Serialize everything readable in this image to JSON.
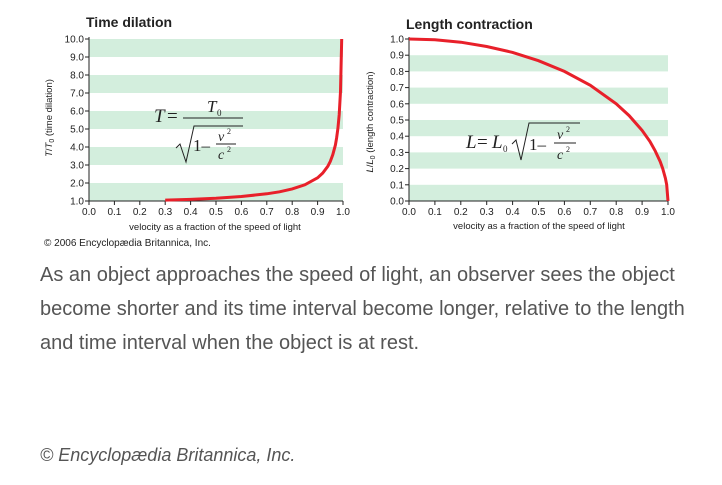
{
  "chart_data": [
    {
      "type": "line",
      "title": "Time dilation",
      "xlabel": "velocity as a fraction of the speed of light",
      "ylabel": "T/T0 (time dilation)",
      "xlim": [
        0.0,
        1.0
      ],
      "ylim": [
        1.0,
        10.0
      ],
      "x_ticks": [
        "0.0",
        "0.1",
        "0.2",
        "0.3",
        "0.4",
        "0.5",
        "0.6",
        "0.7",
        "0.8",
        "0.9",
        "1.0"
      ],
      "y_ticks": [
        "1.0",
        "2.0",
        "3.0",
        "4.0",
        "5.0",
        "6.0",
        "7.0",
        "8.0",
        "9.0",
        "10.0"
      ],
      "grid": "horizontal bands",
      "band_color": "#d3eedd",
      "line_color": "#e8202a",
      "formula": "T = T0 / sqrt(1 - v^2/c^2)",
      "x": [
        0.3,
        0.4,
        0.5,
        0.6,
        0.7,
        0.75,
        0.8,
        0.85,
        0.9,
        0.92,
        0.94,
        0.95,
        0.96,
        0.97,
        0.975,
        0.98,
        0.985,
        0.99,
        0.995
      ],
      "values": [
        1.05,
        1.09,
        1.15,
        1.25,
        1.4,
        1.51,
        1.67,
        1.9,
        2.29,
        2.55,
        2.93,
        3.2,
        3.57,
        4.11,
        4.5,
        5.03,
        5.8,
        7.09,
        10.0
      ]
    },
    {
      "type": "line",
      "title": "Length contraction",
      "xlabel": "velocity as a fraction of the speed of light",
      "ylabel": "L/L0 (length contraction)",
      "xlim": [
        0.0,
        1.0
      ],
      "ylim": [
        0.0,
        1.0
      ],
      "x_ticks": [
        "0.0",
        "0.1",
        "0.2",
        "0.3",
        "0.4",
        "0.5",
        "0.6",
        "0.7",
        "0.8",
        "0.9",
        "1.0"
      ],
      "y_ticks": [
        "0.0",
        "0.1",
        "0.2",
        "0.3",
        "0.4",
        "0.5",
        "0.6",
        "0.7",
        "0.8",
        "0.9",
        "1.0"
      ],
      "grid": "horizontal bands",
      "band_color": "#d3eedd",
      "line_color": "#e8202a",
      "formula": "L = L0 sqrt(1 - v^2/c^2)",
      "x": [
        0.0,
        0.1,
        0.2,
        0.3,
        0.4,
        0.5,
        0.6,
        0.7,
        0.8,
        0.85,
        0.9,
        0.93,
        0.95,
        0.97,
        0.98,
        0.99,
        0.995,
        1.0
      ],
      "values": [
        1.0,
        0.995,
        0.98,
        0.954,
        0.917,
        0.866,
        0.8,
        0.714,
        0.6,
        0.527,
        0.436,
        0.368,
        0.312,
        0.243,
        0.199,
        0.141,
        0.1,
        0.0
      ]
    }
  ],
  "credit_small": "© 2006 Encyclopædia Britannica, Inc.",
  "caption": "As an object approaches the speed of light, an observer sees the object become shorter and its time interval become longer, relative to the length and time interval when the object is at rest.",
  "footer_credit": "© Encyclopædia Britannica, Inc."
}
